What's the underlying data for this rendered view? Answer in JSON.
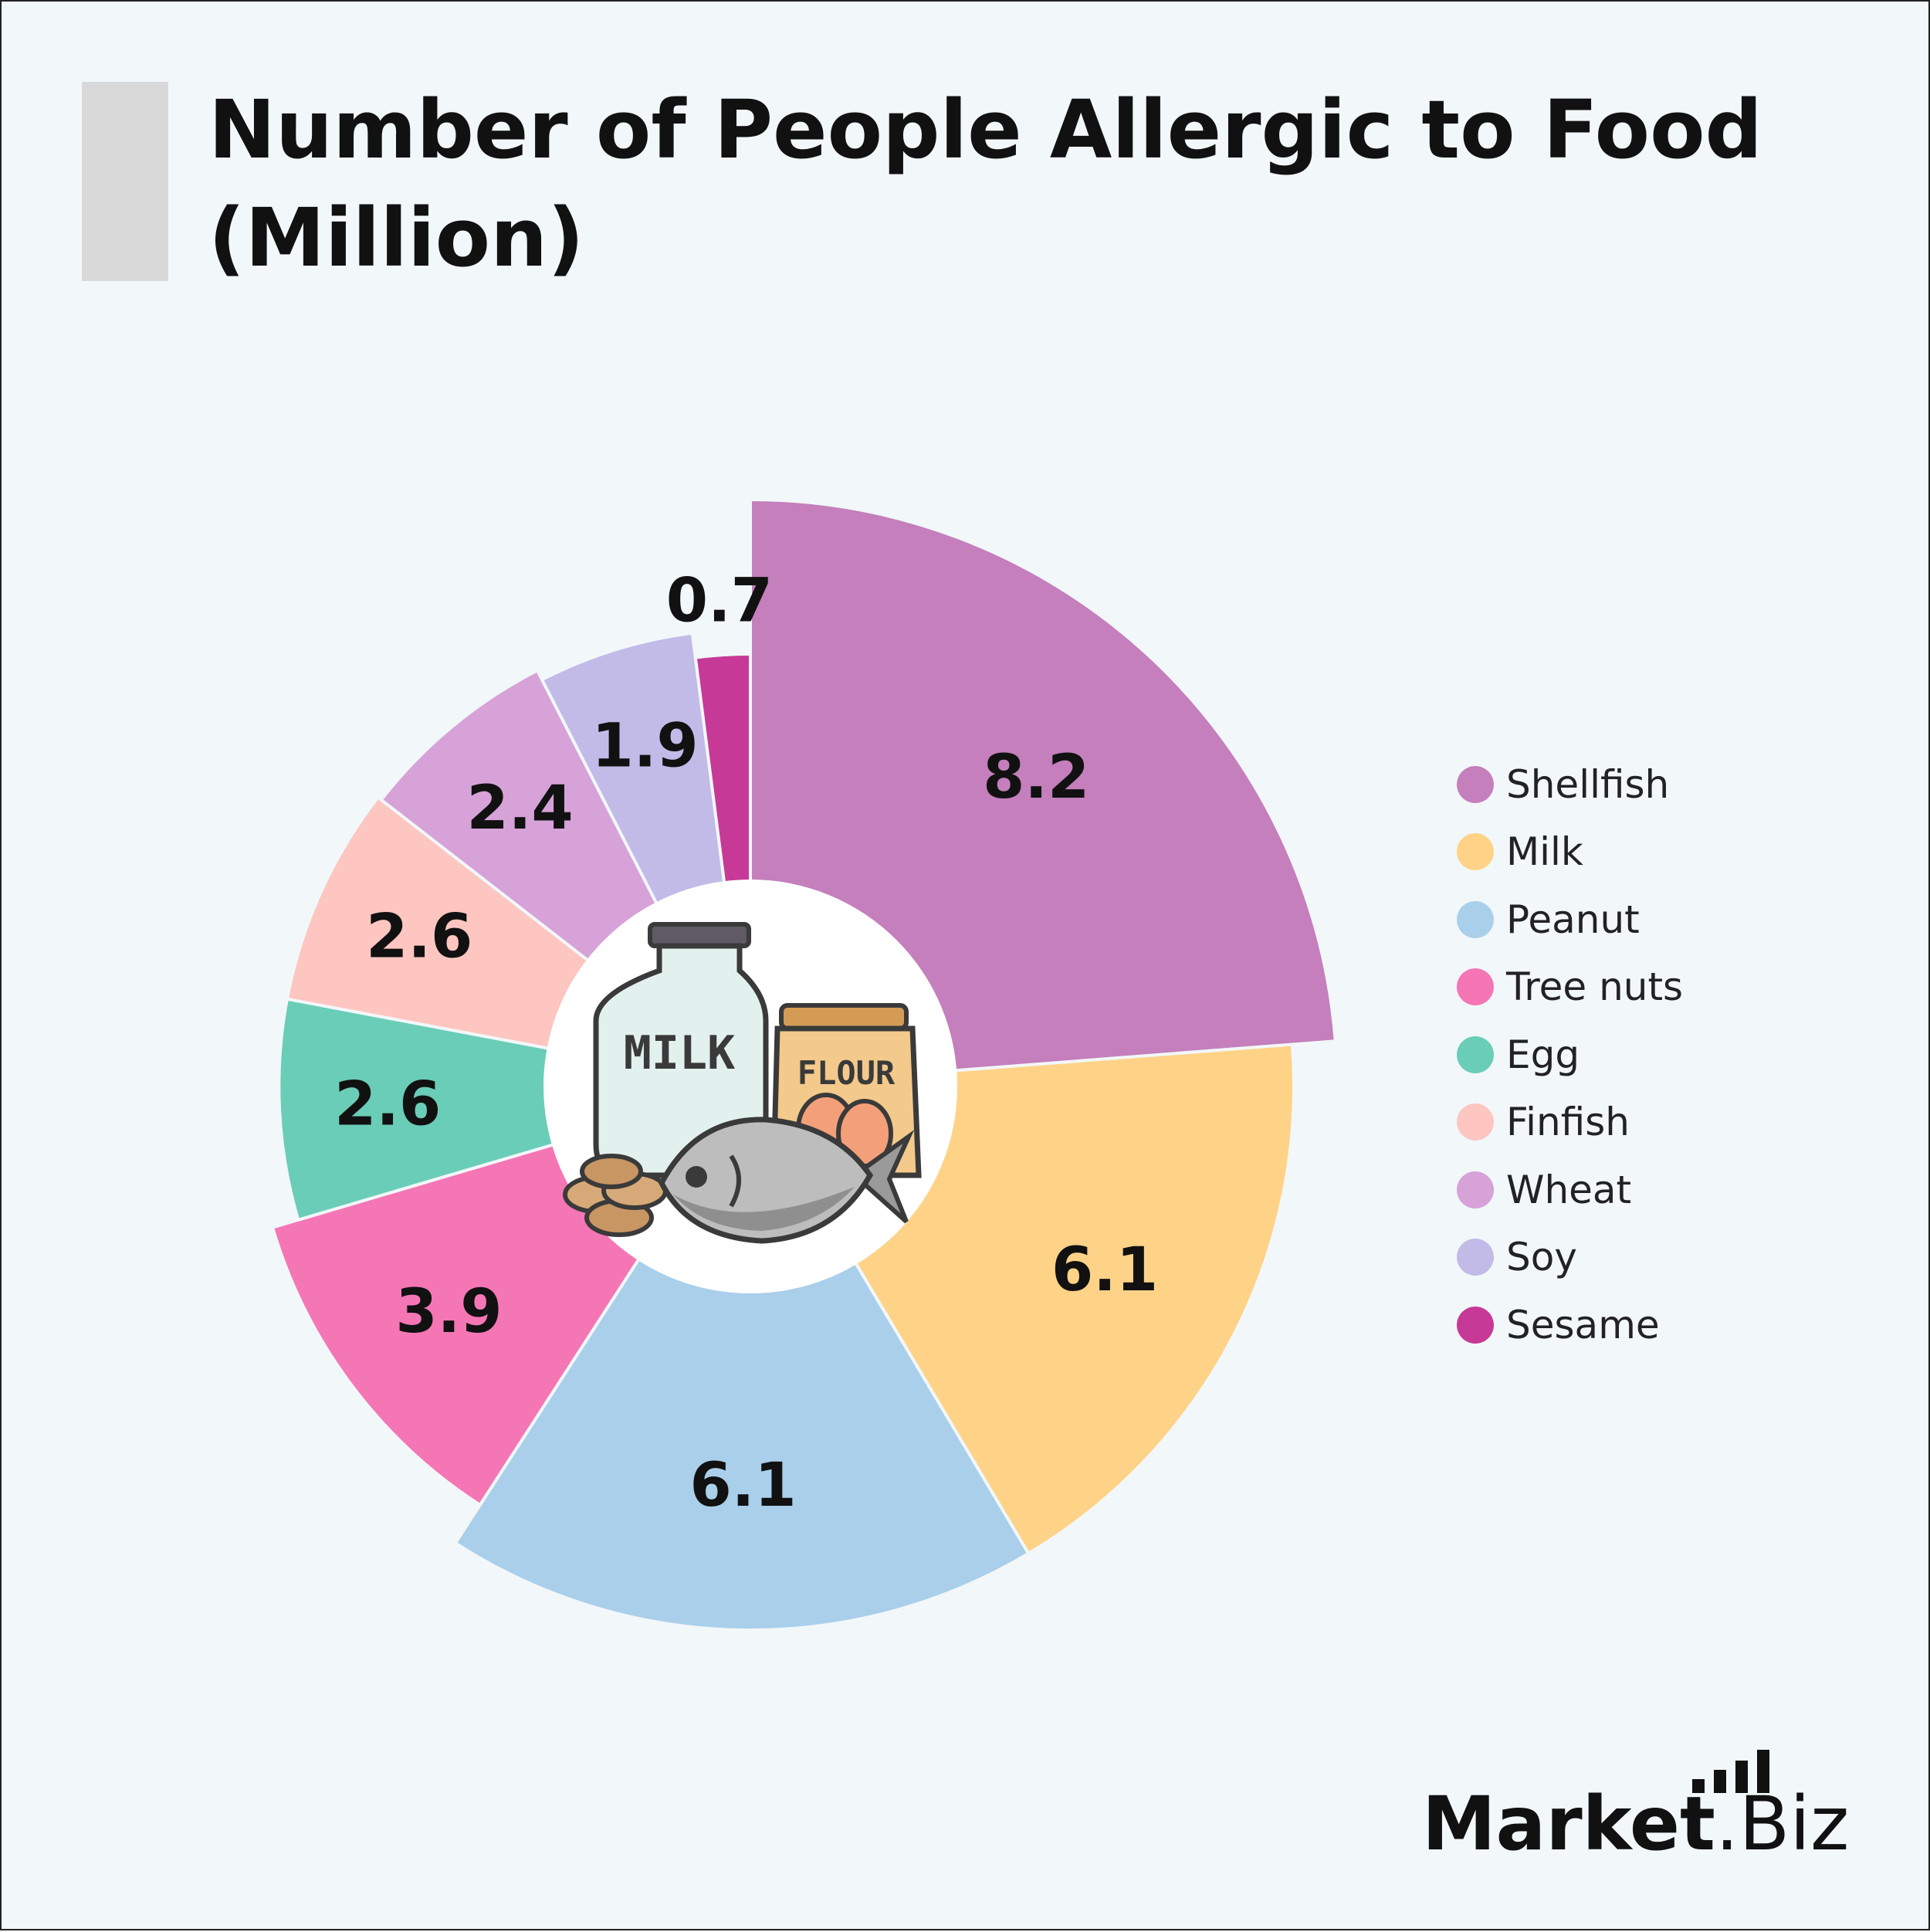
{
  "title": "Number of People Allergic to Food (Million)",
  "chart_data": {
    "type": "pie",
    "donut": true,
    "categories": [
      "Shellfish",
      "Milk",
      "Peanut",
      "Tree nuts",
      "Egg",
      "Finfish",
      "Wheat",
      "Soy",
      "Sesame"
    ],
    "values": [
      8.2,
      6.1,
      6.1,
      3.9,
      2.6,
      2.6,
      2.4,
      1.9,
      0.7
    ],
    "colors": [
      "#c47fbc",
      "#fed387",
      "#a9cfea",
      "#f576b5",
      "#6acdb7",
      "#fdc6c1",
      "#d6a2d8",
      "#c2bbe8",
      "#c73996"
    ],
    "legend_position": "right",
    "center_icon": "food-allergens-icon"
  },
  "legend": {
    "items": [
      {
        "label": "Shellfish",
        "color": "#c47fbc"
      },
      {
        "label": "Milk",
        "color": "#fed387"
      },
      {
        "label": "Peanut",
        "color": "#a9cfea"
      },
      {
        "label": "Tree nuts",
        "color": "#f576b5"
      },
      {
        "label": "Egg",
        "color": "#6acdb7"
      },
      {
        "label": "Finfish",
        "color": "#fdc6c1"
      },
      {
        "label": "Wheat",
        "color": "#d6a2d8"
      },
      {
        "label": "Soy",
        "color": "#c2bbe8"
      },
      {
        "label": "Sesame",
        "color": "#c73996"
      }
    ]
  },
  "icon": {
    "milk_label": "MILK",
    "flour_label": "FLOUR"
  },
  "logo": {
    "name": "Market",
    "suffix": ".Biz"
  }
}
